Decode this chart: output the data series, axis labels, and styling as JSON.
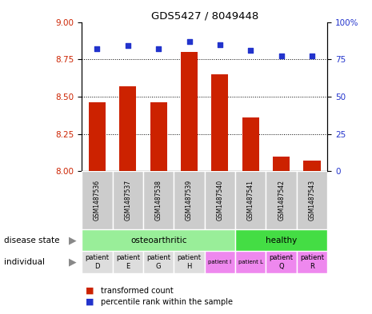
{
  "title": "GDS5427 / 8049448",
  "samples": [
    "GSM1487536",
    "GSM1487537",
    "GSM1487538",
    "GSM1487539",
    "GSM1487540",
    "GSM1487541",
    "GSM1487542",
    "GSM1487543"
  ],
  "bar_values": [
    8.46,
    8.57,
    8.46,
    8.8,
    8.65,
    8.36,
    8.1,
    8.07
  ],
  "dot_values": [
    82,
    84,
    82,
    87,
    85,
    81,
    77,
    77
  ],
  "ylim_left": [
    8.0,
    9.0
  ],
  "ylim_right": [
    0,
    100
  ],
  "yticks_left": [
    8.0,
    8.25,
    8.5,
    8.75,
    9.0
  ],
  "yticks_right": [
    0,
    25,
    50,
    75,
    100
  ],
  "bar_color": "#cc2200",
  "dot_color": "#2233cc",
  "disease_state_groups": [
    {
      "label": "osteoarthritic",
      "start": 0,
      "end": 5,
      "color": "#99ee99"
    },
    {
      "label": "healthy",
      "start": 5,
      "end": 8,
      "color": "#44dd44"
    }
  ],
  "individual_groups": [
    {
      "label": "patient\nD",
      "start": 0,
      "end": 1,
      "color": "#dddddd",
      "small": false
    },
    {
      "label": "patient\nE",
      "start": 1,
      "end": 2,
      "color": "#dddddd",
      "small": false
    },
    {
      "label": "patient\nG",
      "start": 2,
      "end": 3,
      "color": "#dddddd",
      "small": false
    },
    {
      "label": "patient\nH",
      "start": 3,
      "end": 4,
      "color": "#dddddd",
      "small": false
    },
    {
      "label": "patient I",
      "start": 4,
      "end": 5,
      "color": "#ee88ee",
      "small": true
    },
    {
      "label": "patient L",
      "start": 5,
      "end": 6,
      "color": "#ee88ee",
      "small": true
    },
    {
      "label": "patient\nQ",
      "start": 6,
      "end": 7,
      "color": "#ee88ee",
      "small": false
    },
    {
      "label": "patient\nR",
      "start": 7,
      "end": 8,
      "color": "#ee88ee",
      "small": false
    }
  ],
  "left_label_color": "#cc2200",
  "right_label_color": "#2233cc",
  "sample_box_color": "#cccccc",
  "bar_width": 0.55
}
